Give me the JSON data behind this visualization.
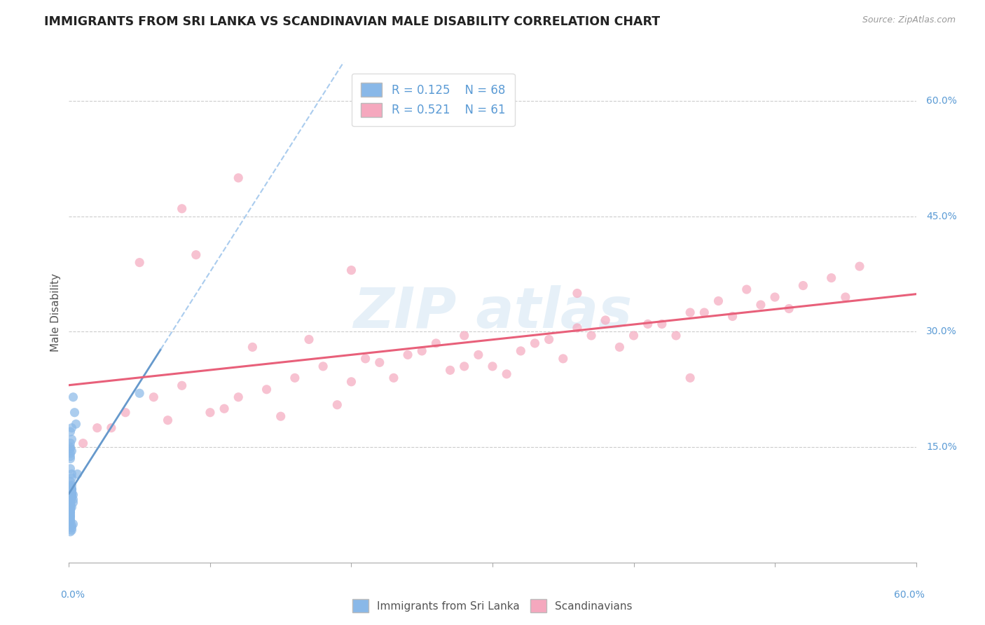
{
  "title": "IMMIGRANTS FROM SRI LANKA VS SCANDINAVIAN MALE DISABILITY CORRELATION CHART",
  "source": "Source: ZipAtlas.com",
  "ylabel": "Male Disability",
  "legend_label1": "Immigrants from Sri Lanka",
  "legend_label2": "Scandinavians",
  "r1": 0.125,
  "n1": 68,
  "r2": 0.521,
  "n2": 61,
  "xlim": [
    0.0,
    0.6
  ],
  "ylim": [
    0.0,
    0.65
  ],
  "color_blue": "#89b8e8",
  "color_pink": "#f5a8be",
  "color_blue_line": "#6699cc",
  "color_blue_line_dashed": "#aaccee",
  "color_pink_line": "#e8607a",
  "background_color": "#ffffff",
  "sri_lanka_x": [
    0.001,
    0.002,
    0.001,
    0.003,
    0.001,
    0.002,
    0.001,
    0.001,
    0.002,
    0.001,
    0.001,
    0.002,
    0.001,
    0.001,
    0.002,
    0.001,
    0.003,
    0.001,
    0.002,
    0.001,
    0.001,
    0.002,
    0.001,
    0.001,
    0.002,
    0.001,
    0.001,
    0.001,
    0.002,
    0.001,
    0.001,
    0.002,
    0.001,
    0.003,
    0.001,
    0.002,
    0.001,
    0.001,
    0.001,
    0.002,
    0.001,
    0.001,
    0.002,
    0.001,
    0.001,
    0.002,
    0.001,
    0.003,
    0.001,
    0.002,
    0.001,
    0.001,
    0.002,
    0.001,
    0.001,
    0.002,
    0.001,
    0.001,
    0.001,
    0.002,
    0.004,
    0.003,
    0.005,
    0.002,
    0.006,
    0.05,
    0.001,
    0.001
  ],
  "sri_lanka_y": [
    0.085,
    0.095,
    0.075,
    0.082,
    0.07,
    0.088,
    0.078,
    0.065,
    0.09,
    0.06,
    0.092,
    0.072,
    0.08,
    0.068,
    0.085,
    0.073,
    0.088,
    0.065,
    0.095,
    0.078,
    0.082,
    0.09,
    0.07,
    0.075,
    0.088,
    0.068,
    0.092,
    0.06,
    0.085,
    0.073,
    0.1,
    0.11,
    0.092,
    0.078,
    0.105,
    0.115,
    0.098,
    0.122,
    0.088,
    0.095,
    0.062,
    0.055,
    0.048,
    0.052,
    0.058,
    0.045,
    0.04,
    0.05,
    0.055,
    0.042,
    0.138,
    0.15,
    0.145,
    0.155,
    0.142,
    0.16,
    0.148,
    0.135,
    0.17,
    0.175,
    0.195,
    0.215,
    0.18,
    0.1,
    0.115,
    0.22,
    0.065,
    0.07
  ],
  "scandinavian_x": [
    0.02,
    0.04,
    0.06,
    0.08,
    0.1,
    0.12,
    0.14,
    0.16,
    0.18,
    0.2,
    0.22,
    0.24,
    0.26,
    0.28,
    0.3,
    0.32,
    0.34,
    0.36,
    0.38,
    0.4,
    0.42,
    0.44,
    0.46,
    0.48,
    0.5,
    0.52,
    0.54,
    0.56,
    0.05,
    0.09,
    0.13,
    0.17,
    0.21,
    0.25,
    0.29,
    0.33,
    0.37,
    0.41,
    0.45,
    0.49,
    0.01,
    0.03,
    0.07,
    0.11,
    0.15,
    0.19,
    0.23,
    0.27,
    0.31,
    0.35,
    0.39,
    0.43,
    0.47,
    0.51,
    0.55,
    0.08,
    0.12,
    0.2,
    0.28,
    0.36,
    0.44
  ],
  "scandinavian_y": [
    0.175,
    0.195,
    0.215,
    0.23,
    0.195,
    0.215,
    0.225,
    0.24,
    0.255,
    0.235,
    0.26,
    0.27,
    0.285,
    0.295,
    0.255,
    0.275,
    0.29,
    0.305,
    0.315,
    0.295,
    0.31,
    0.325,
    0.34,
    0.355,
    0.345,
    0.36,
    0.37,
    0.385,
    0.39,
    0.4,
    0.28,
    0.29,
    0.265,
    0.275,
    0.27,
    0.285,
    0.295,
    0.31,
    0.325,
    0.335,
    0.155,
    0.175,
    0.185,
    0.2,
    0.19,
    0.205,
    0.24,
    0.25,
    0.245,
    0.265,
    0.28,
    0.295,
    0.32,
    0.33,
    0.345,
    0.46,
    0.5,
    0.38,
    0.255,
    0.35,
    0.24
  ]
}
